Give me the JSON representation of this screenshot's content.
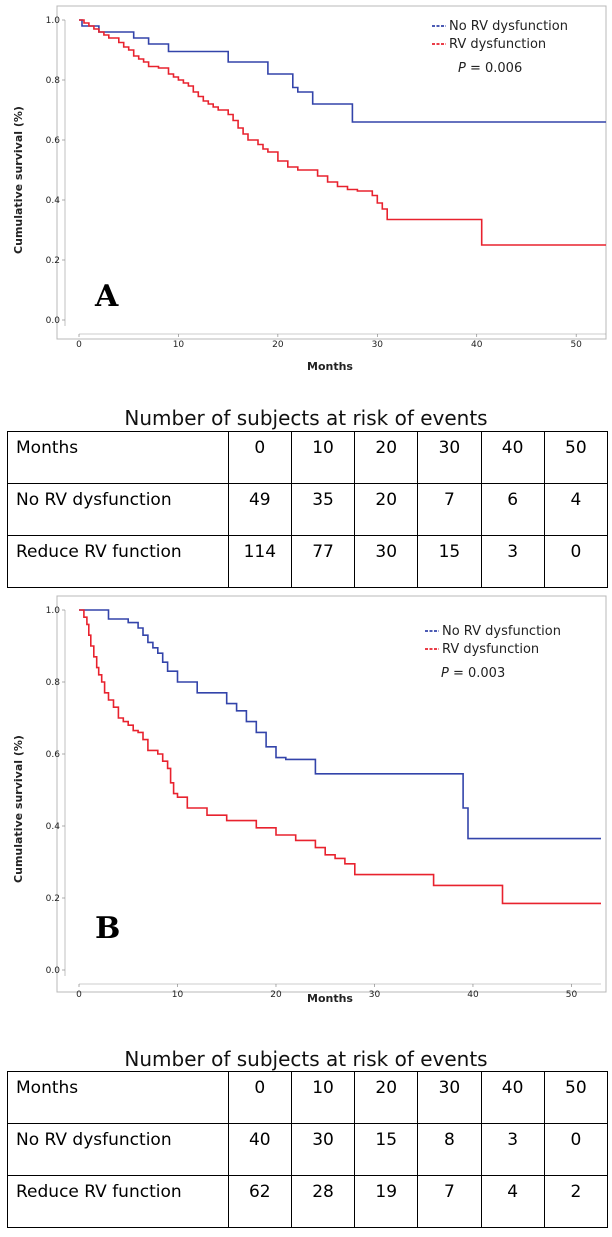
{
  "chart_data": [
    {
      "type": "line",
      "panel_label": "A",
      "xlabel": "Months",
      "ylabel": "Cumulative survival (%)",
      "xlim": [
        0,
        53
      ],
      "ylim": [
        0,
        1.0
      ],
      "xticks": [
        0,
        10,
        20,
        30,
        40,
        50
      ],
      "yticks": [
        0.0,
        0.2,
        0.4,
        0.6,
        0.8,
        1.0
      ],
      "ytick_labels": [
        "0.0",
        "0.2",
        "0.4",
        "0.6",
        "0.8",
        "1.0"
      ],
      "legend_position": "top-right",
      "p_prefix": "P",
      "p_value": "= 0.006",
      "series": [
        {
          "name": "No RV dysfunction",
          "color": "#3344aa",
          "step": true,
          "x": [
            0,
            0.3,
            2,
            5.5,
            7,
            9,
            15,
            19,
            21.5,
            22,
            23.5,
            27.5,
            53
          ],
          "y": [
            1.0,
            0.98,
            0.96,
            0.94,
            0.92,
            0.895,
            0.86,
            0.82,
            0.775,
            0.76,
            0.72,
            0.66,
            0.66
          ]
        },
        {
          "name": "RV dysfunction",
          "color": "#e8222e",
          "step": true,
          "x": [
            0,
            0.5,
            1,
            1.5,
            2,
            2.5,
            3,
            4,
            4.5,
            5,
            5.5,
            6,
            6.5,
            7,
            8,
            9,
            9.5,
            10,
            10.5,
            11,
            11.5,
            12,
            12.5,
            13,
            13.5,
            14,
            15,
            15.5,
            16,
            16.5,
            17,
            18,
            18.5,
            19,
            20,
            21,
            22,
            24,
            25,
            26,
            27,
            28,
            29.5,
            30,
            30.5,
            31,
            40.5,
            53
          ],
          "y": [
            1.0,
            0.99,
            0.98,
            0.97,
            0.96,
            0.95,
            0.94,
            0.925,
            0.91,
            0.9,
            0.88,
            0.87,
            0.86,
            0.845,
            0.84,
            0.82,
            0.81,
            0.8,
            0.79,
            0.78,
            0.76,
            0.745,
            0.73,
            0.72,
            0.71,
            0.7,
            0.685,
            0.665,
            0.64,
            0.62,
            0.6,
            0.585,
            0.57,
            0.56,
            0.53,
            0.51,
            0.5,
            0.48,
            0.46,
            0.445,
            0.435,
            0.43,
            0.415,
            0.39,
            0.37,
            0.335,
            0.25,
            0.25
          ]
        }
      ]
    },
    {
      "type": "line",
      "panel_label": "B",
      "xlabel": "Months",
      "ylabel": "Cumulative survival (%)",
      "xlim": [
        0,
        53
      ],
      "ylim": [
        0,
        1.0
      ],
      "xticks": [
        0,
        10,
        20,
        30,
        40,
        50
      ],
      "yticks": [
        0.0,
        0.2,
        0.4,
        0.6,
        0.8,
        1.0
      ],
      "ytick_labels": [
        "0.0",
        "0.2",
        "0.4",
        "0.6",
        "0.8",
        "1.0"
      ],
      "legend_position": "top-right",
      "p_prefix": "P",
      "p_value": "= 0.003",
      "series": [
        {
          "name": "No RV dysfunction",
          "color": "#3344aa",
          "step": true,
          "x": [
            0,
            3,
            5,
            6,
            6.5,
            7,
            7.5,
            8,
            8.5,
            9,
            10,
            12,
            15,
            16,
            17,
            18,
            19,
            20,
            21,
            24,
            39,
            39.5,
            53
          ],
          "y": [
            1.0,
            0.975,
            0.965,
            0.95,
            0.93,
            0.91,
            0.895,
            0.88,
            0.855,
            0.83,
            0.8,
            0.77,
            0.74,
            0.72,
            0.69,
            0.66,
            0.62,
            0.59,
            0.585,
            0.545,
            0.45,
            0.365,
            0.365
          ]
        },
        {
          "name": "RV dysfunction",
          "color": "#e8222e",
          "step": true,
          "x": [
            0,
            0.5,
            0.8,
            1,
            1.2,
            1.5,
            1.8,
            2,
            2.3,
            2.6,
            3,
            3.5,
            4,
            4.5,
            5,
            5.5,
            6,
            6.5,
            7,
            8,
            8.5,
            9,
            9.3,
            9.6,
            10,
            11,
            13,
            15,
            18,
            20,
            22,
            24,
            25,
            26,
            27,
            28,
            36,
            43,
            53
          ],
          "y": [
            1.0,
            0.98,
            0.96,
            0.93,
            0.9,
            0.87,
            0.84,
            0.82,
            0.8,
            0.77,
            0.75,
            0.73,
            0.7,
            0.69,
            0.68,
            0.665,
            0.66,
            0.64,
            0.61,
            0.6,
            0.58,
            0.56,
            0.52,
            0.49,
            0.48,
            0.45,
            0.43,
            0.415,
            0.395,
            0.375,
            0.36,
            0.34,
            0.32,
            0.31,
            0.295,
            0.265,
            0.235,
            0.185,
            0.185
          ]
        }
      ]
    }
  ],
  "risk_tables": [
    {
      "title": "Number of subjects at risk of events",
      "header": [
        "Months",
        "0",
        "10",
        "20",
        "30",
        "40",
        "50"
      ],
      "rows": [
        [
          "No RV dysfunction",
          "49",
          "35",
          "20",
          "7",
          "6",
          "4"
        ],
        [
          "Reduce RV function",
          "114",
          "77",
          "30",
          "15",
          "3",
          "0"
        ]
      ]
    },
    {
      "title": "Number of subjects at risk of events",
      "header": [
        "Months",
        "0",
        "10",
        "20",
        "30",
        "40",
        "50"
      ],
      "rows": [
        [
          "No RV dysfunction",
          "40",
          "30",
          "15",
          "8",
          "3",
          "0"
        ],
        [
          "Reduce RV function",
          "62",
          "28",
          "19",
          "7",
          "4",
          "2"
        ]
      ]
    }
  ]
}
